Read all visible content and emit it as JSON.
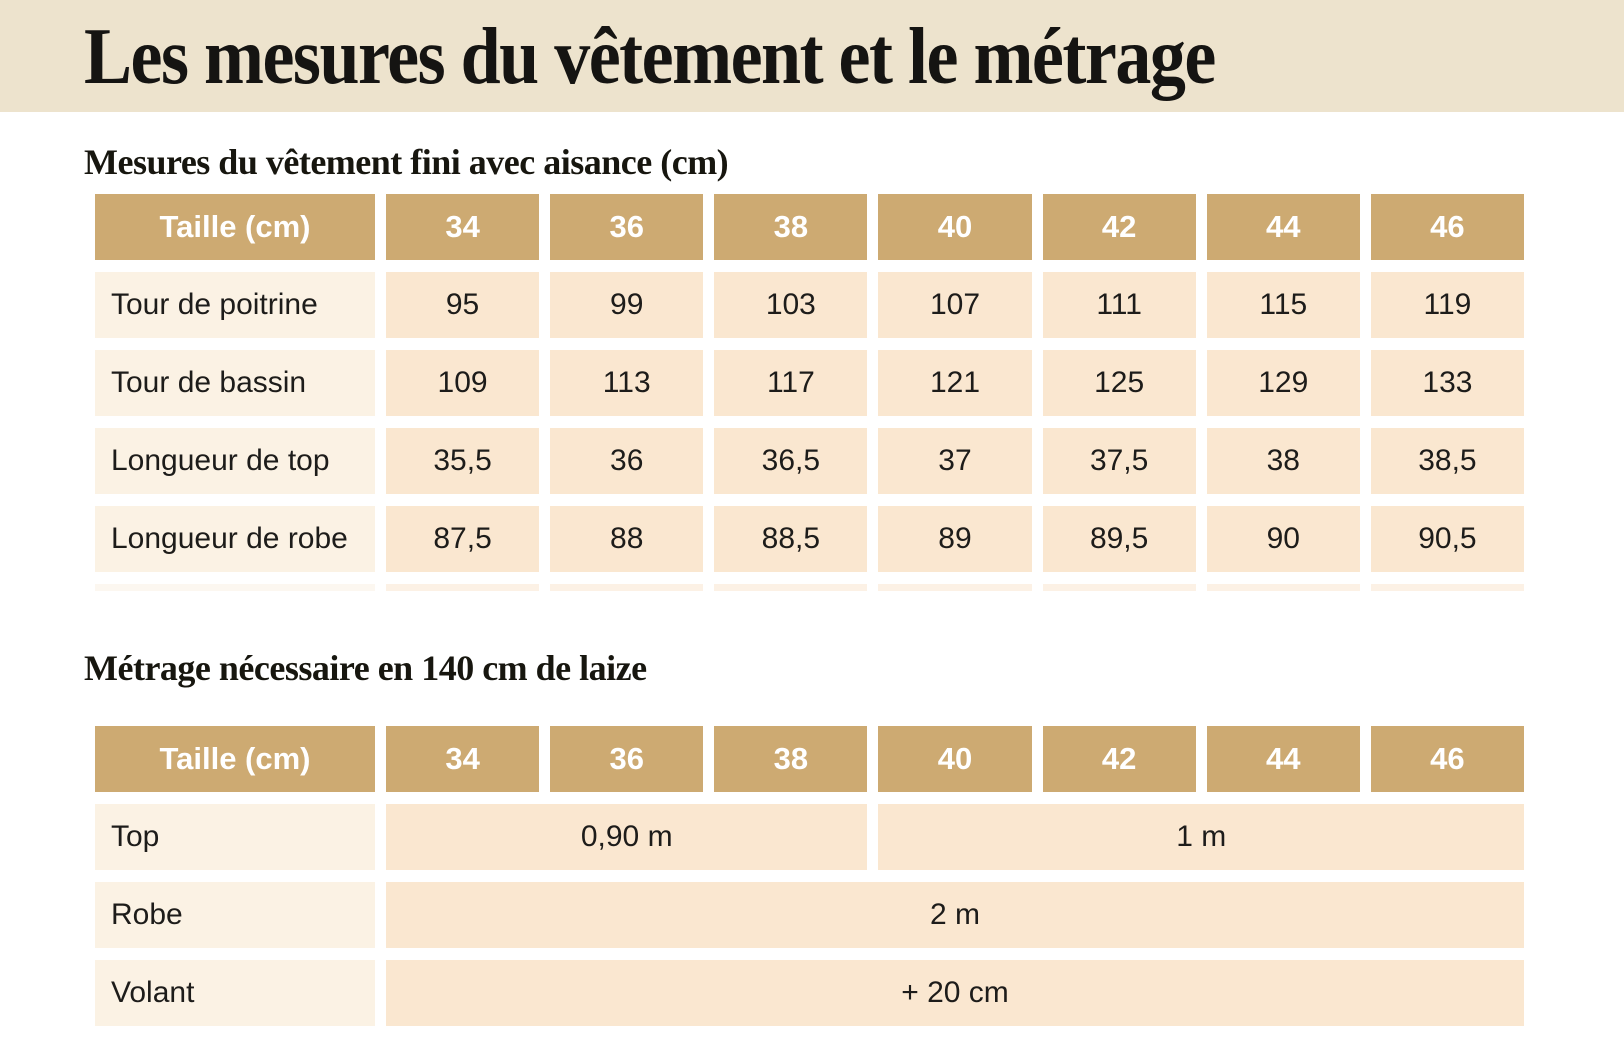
{
  "page": {
    "title": "Les mesures du vêtement et le métrage"
  },
  "colors": {
    "banner_bg": "#EDE3CD",
    "header_cell_bg": "#CDAA72",
    "header_cell_text": "#FFFFFF",
    "value_cell_bg": "#FAE7D0",
    "label_cell_bg": "#FBF2E4",
    "text_dark": "#1B1A17"
  },
  "measures": {
    "heading": "Mesures du vêtement fini avec aisance (cm)",
    "header": [
      "Taille (cm)",
      "34",
      "36",
      "38",
      "40",
      "42",
      "44",
      "46"
    ],
    "rows": [
      {
        "label": "Tour de poitrine",
        "values": [
          "95",
          "99",
          "103",
          "107",
          "111",
          "115",
          "119"
        ]
      },
      {
        "label": "Tour de bassin",
        "values": [
          "109",
          "113",
          "117",
          "121",
          "125",
          "129",
          "133"
        ]
      },
      {
        "label": "Longueur de top",
        "values": [
          "35,5",
          "36",
          "36,5",
          "37",
          "37,5",
          "38",
          "38,5"
        ]
      },
      {
        "label": "Longueur de robe",
        "values": [
          "87,5",
          "88",
          "88,5",
          "89",
          "89,5",
          "90",
          "90,5"
        ]
      }
    ]
  },
  "metrage": {
    "heading": "Métrage nécessaire en 140 cm de laize",
    "header": [
      "Taille (cm)",
      "34",
      "36",
      "38",
      "40",
      "42",
      "44",
      "46"
    ],
    "rows": [
      {
        "label": "Top",
        "cells": [
          {
            "value": "0,90 m",
            "span": 3
          },
          {
            "value": "1 m",
            "span": 4
          }
        ]
      },
      {
        "label": "Robe",
        "cells": [
          {
            "value": "2 m",
            "span": 7
          }
        ]
      },
      {
        "label": "Volant",
        "cells": [
          {
            "value": "+ 20 cm",
            "span": 7
          }
        ]
      }
    ]
  }
}
